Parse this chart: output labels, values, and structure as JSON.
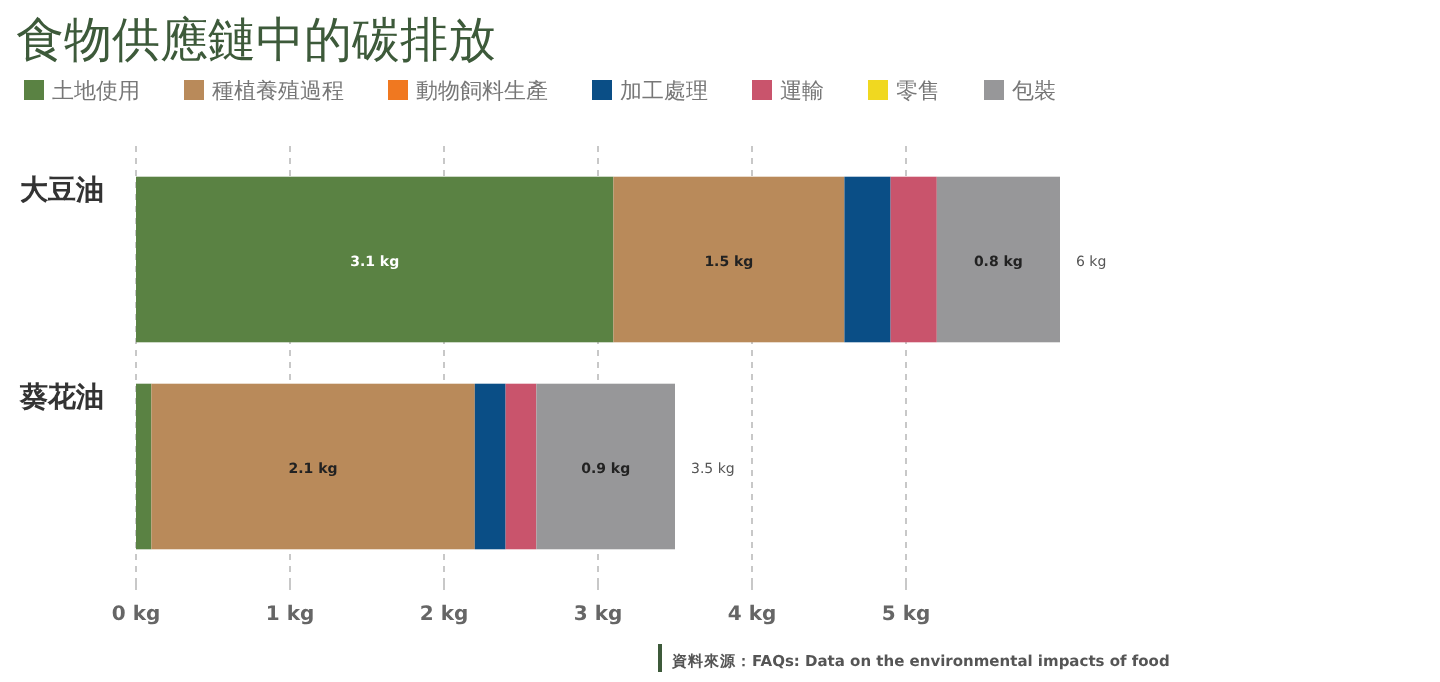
{
  "chart_data": {
    "type": "bar",
    "title": "食物供應鏈中的碳排放",
    "orientation": "horizontal",
    "stacked": true,
    "categories": [
      "大豆油",
      "葵花油"
    ],
    "series": [
      {
        "name": "土地使用",
        "color": "#5a8243",
        "values": [
          3.1,
          0.1
        ],
        "value_labels": [
          "3.1 kg",
          null
        ]
      },
      {
        "name": "種植養殖過程",
        "color": "#b98a5a",
        "values": [
          1.5,
          2.1
        ],
        "value_labels": [
          "1.5 kg",
          "2.1 kg"
        ]
      },
      {
        "name": "動物飼料生產",
        "color": "#f07820",
        "values": [
          0,
          0
        ]
      },
      {
        "name": "加工處理",
        "color": "#0a4e86",
        "values": [
          0.3,
          0.2
        ]
      },
      {
        "name": "運輸",
        "color": "#c9546c",
        "values": [
          0.3,
          0.2
        ]
      },
      {
        "name": "零售",
        "color": "#f0d820",
        "values": [
          0,
          0
        ]
      },
      {
        "name": "包裝",
        "color": "#979799",
        "values": [
          0.8,
          0.9
        ],
        "value_labels": [
          "0.8 kg",
          "0.9 kg"
        ]
      }
    ],
    "totals": [
      "6 kg",
      "3.5 kg"
    ],
    "xlim": [
      0,
      6
    ],
    "xticks": [
      {
        "value": 0,
        "label": "0 kg"
      },
      {
        "value": 1,
        "label": "1 kg"
      },
      {
        "value": 2,
        "label": "2 kg"
      },
      {
        "value": 3,
        "label": "3 kg"
      },
      {
        "value": 4,
        "label": "4 kg"
      },
      {
        "value": 5,
        "label": "5 kg"
      }
    ],
    "grid": "x",
    "legend": "top left",
    "annotations": [
      "資料來源：FAQs: Data on the environmental impacts of food"
    ]
  }
}
